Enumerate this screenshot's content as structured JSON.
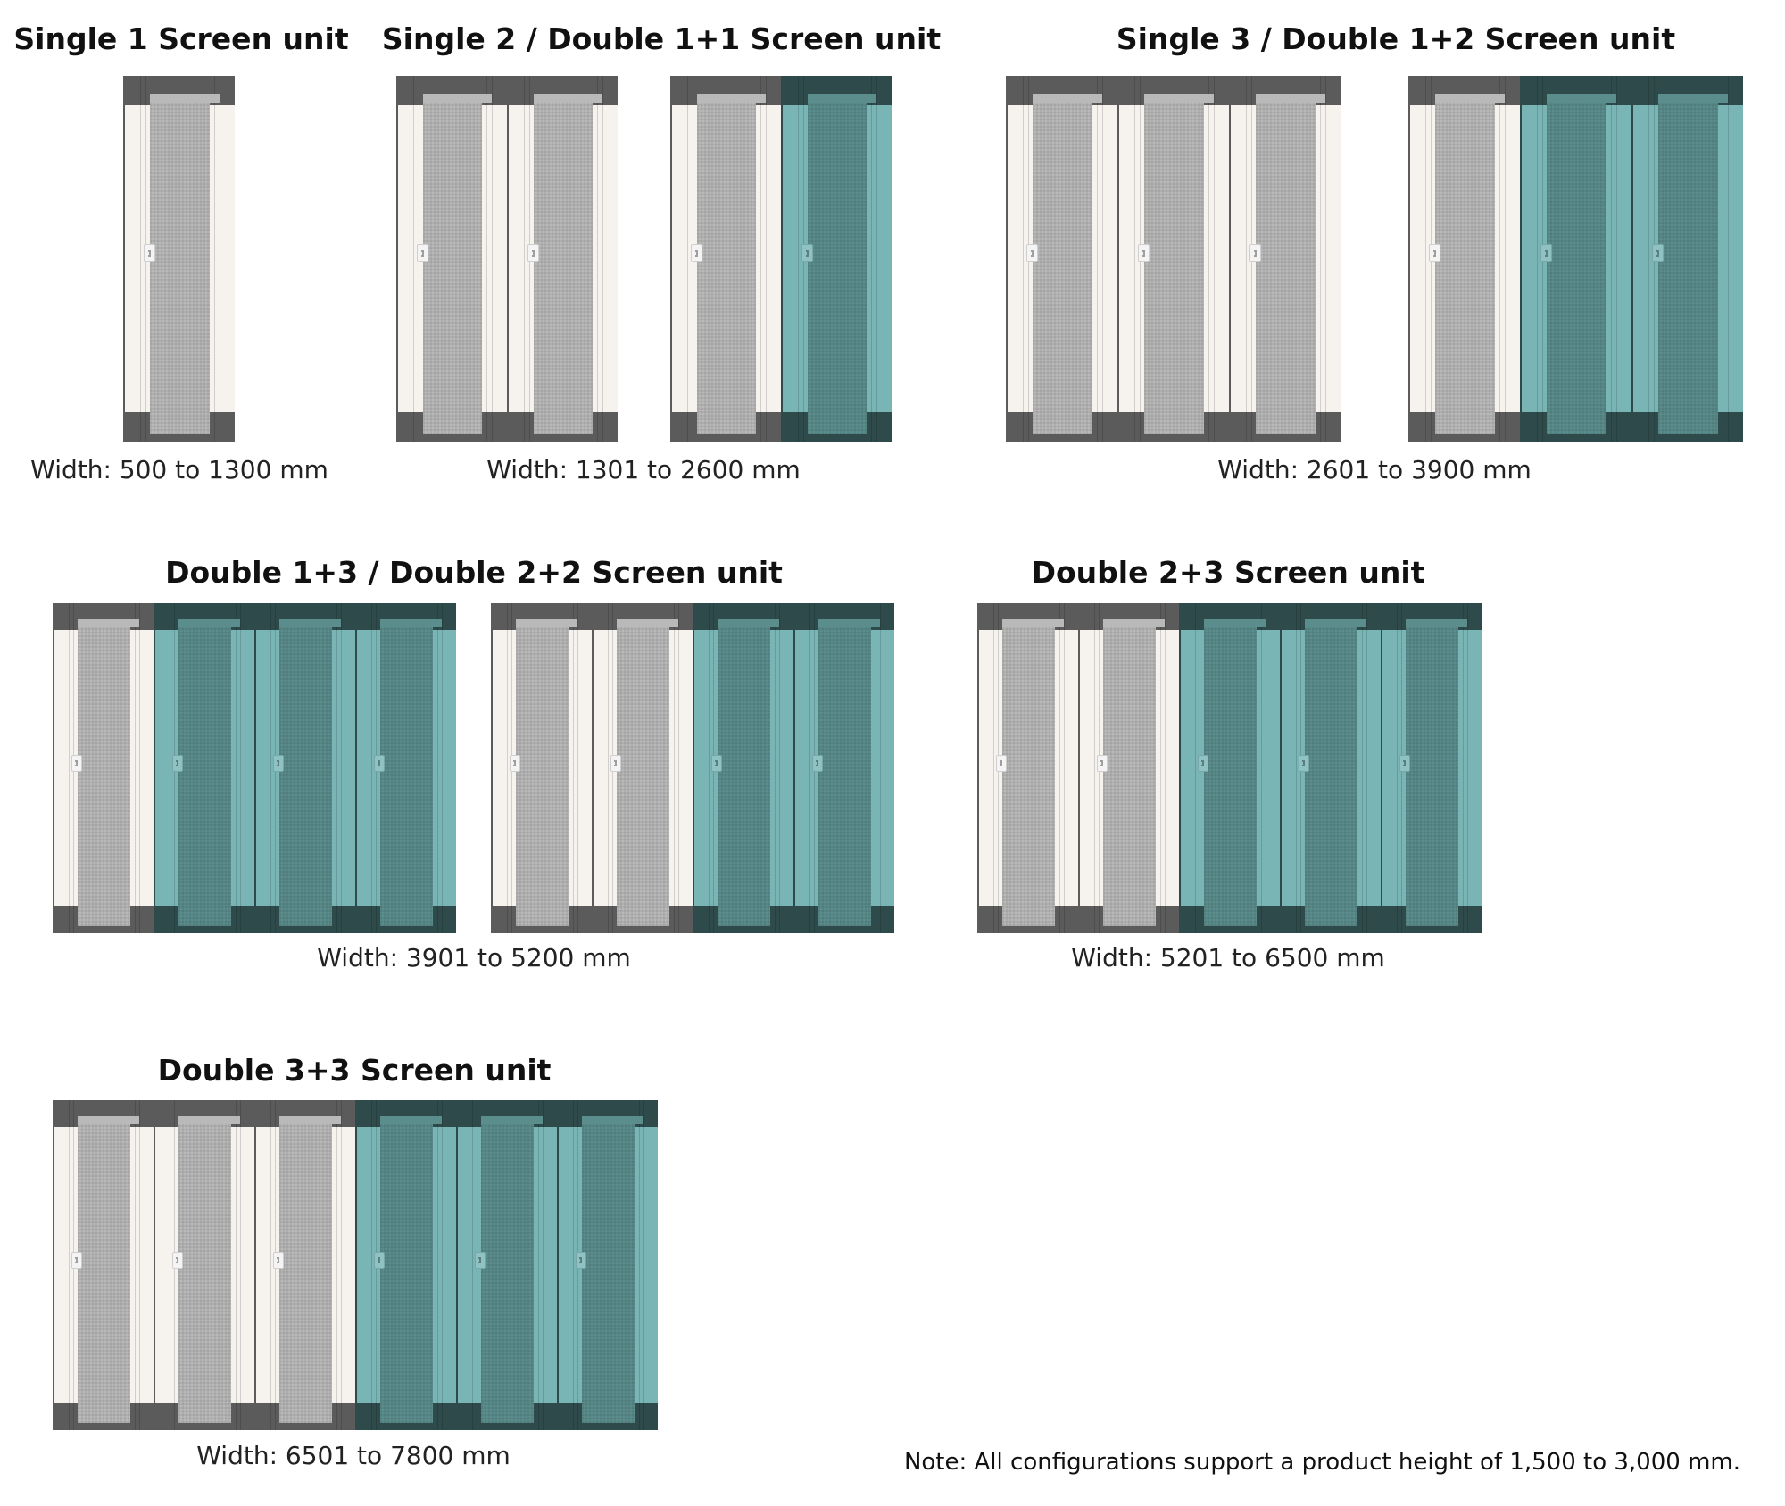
{
  "colors": {
    "grey_frame": "#f6f3ef",
    "grey_cap": "#5b5b5b",
    "grey_mesh": "#b9b9b9",
    "teal_frame": "#7ab5b5",
    "teal_cap": "#2e4a4a",
    "teal_mesh": "#5b8d8d"
  },
  "configurations": [
    {
      "title": "Single 1 Screen unit",
      "width_label": "Width: 500 to 1300 mm",
      "groups": [
        [
          "grey"
        ]
      ]
    },
    {
      "title": "Single 2 / Double 1+1 Screen unit",
      "width_label": "Width: 1301 to 2600 mm",
      "groups": [
        [
          "grey",
          "grey"
        ],
        [
          "grey",
          "teal"
        ]
      ]
    },
    {
      "title": "Single 3 / Double 1+2 Screen unit",
      "width_label": "Width: 2601 to 3900 mm",
      "groups": [
        [
          "grey",
          "grey",
          "grey"
        ],
        [
          "grey",
          "teal",
          "teal"
        ]
      ]
    },
    {
      "title": "Double 1+3 / Double 2+2 Screen unit",
      "width_label": "Width: 3901 to 5200 mm",
      "groups": [
        [
          "grey",
          "teal",
          "teal",
          "teal"
        ],
        [
          "grey",
          "grey",
          "teal",
          "teal"
        ]
      ]
    },
    {
      "title": "Double 2+3 Screen unit",
      "width_label": "Width: 5201 to 6500 mm",
      "groups": [
        [
          "grey",
          "grey",
          "teal",
          "teal",
          "teal"
        ]
      ]
    },
    {
      "title": "Double 3+3 Screen unit",
      "width_label": "Width: 6501 to 7800 mm",
      "groups": [
        [
          "grey",
          "grey",
          "grey",
          "teal",
          "teal",
          "teal"
        ]
      ]
    }
  ],
  "note": "Note: All configurations support a product height of 1,500 to 3,000 mm."
}
